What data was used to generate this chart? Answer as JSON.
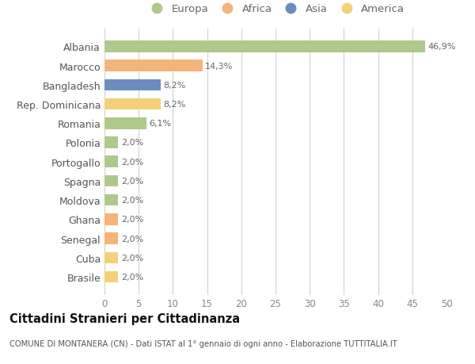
{
  "countries": [
    "Albania",
    "Marocco",
    "Bangladesh",
    "Rep. Dominicana",
    "Romania",
    "Polonia",
    "Portogallo",
    "Spagna",
    "Moldova",
    "Ghana",
    "Senegal",
    "Cuba",
    "Brasile"
  ],
  "values": [
    46.9,
    14.3,
    8.2,
    8.2,
    6.1,
    2.0,
    2.0,
    2.0,
    2.0,
    2.0,
    2.0,
    2.0,
    2.0
  ],
  "labels": [
    "46,9%",
    "14,3%",
    "8,2%",
    "8,2%",
    "6,1%",
    "2,0%",
    "2,0%",
    "2,0%",
    "2,0%",
    "2,0%",
    "2,0%",
    "2,0%",
    "2,0%"
  ],
  "colors": [
    "#aec98a",
    "#f4b47a",
    "#6b8cbf",
    "#f5d07a",
    "#aec98a",
    "#aec98a",
    "#aec98a",
    "#aec98a",
    "#aec98a",
    "#f4b47a",
    "#f4b47a",
    "#f5d07a",
    "#f5d07a"
  ],
  "continents": [
    "Europa",
    "Africa",
    "Asia",
    "America"
  ],
  "legend_colors": [
    "#aec98a",
    "#f4b47a",
    "#6b8cbf",
    "#f5d07a"
  ],
  "xlim": [
    0,
    50
  ],
  "xticks": [
    0,
    5,
    10,
    15,
    20,
    25,
    30,
    35,
    40,
    45,
    50
  ],
  "title_main": "Cittadini Stranieri per Cittadinanza",
  "title_sub": "COMUNE DI MONTANERA (CN) - Dati ISTAT al 1° gennaio di ogni anno - Elaborazione TUTTITALIA.IT",
  "background_color": "#ffffff",
  "grid_color": "#d0d0d0"
}
